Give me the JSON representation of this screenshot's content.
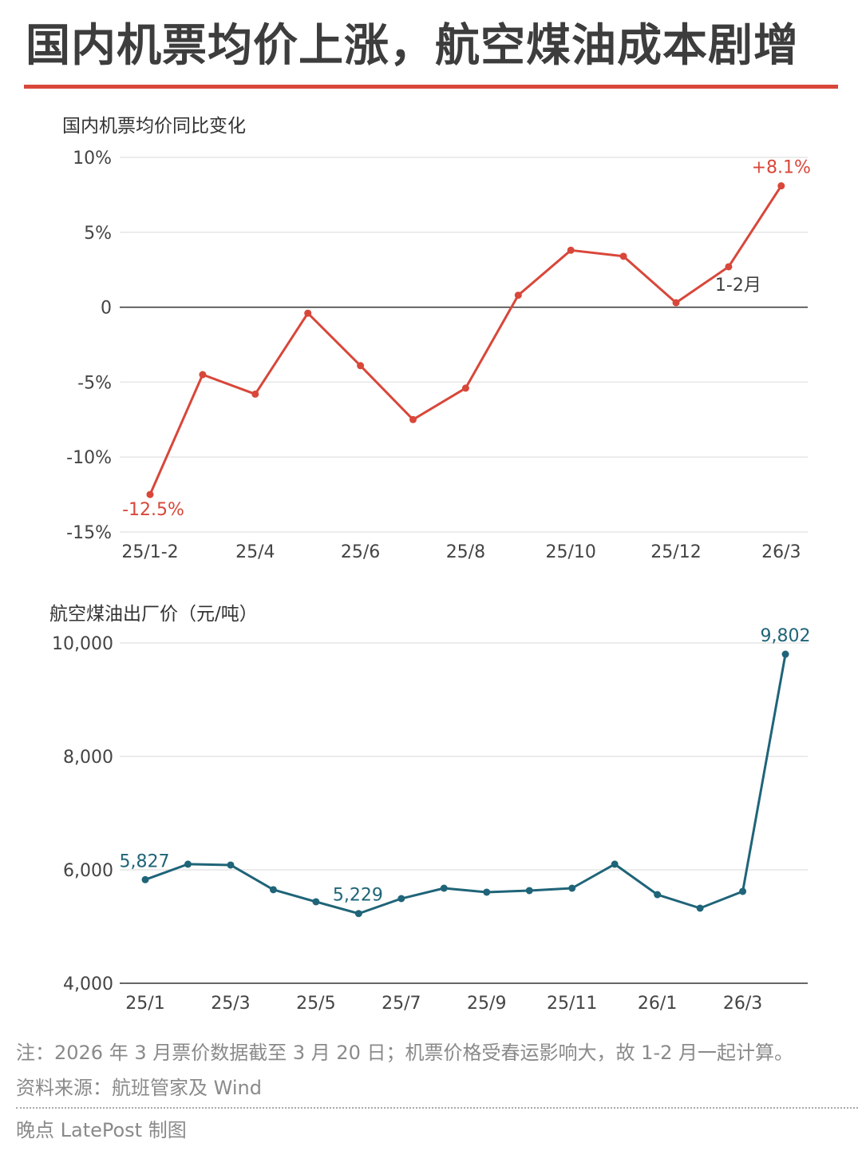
{
  "title": "国内机票均价上涨，航空煤油成本剧增",
  "colors": {
    "accent": "#d8473a",
    "line1": "#d8473a",
    "line2": "#1f6478",
    "grid": "#e6e6e6",
    "zero": "#333333"
  },
  "chart_data": [
    {
      "type": "line",
      "title": "国内机票均价同比变化",
      "x": [
        "25/1-2",
        "25/3",
        "25/4",
        "25/5",
        "25/6",
        "25/7",
        "25/8",
        "25/9",
        "25/10",
        "25/11",
        "25/12",
        "26/1-2",
        "26/3"
      ],
      "values": [
        -12.5,
        -4.5,
        -5.8,
        -0.4,
        -3.9,
        -7.5,
        -5.4,
        0.8,
        3.8,
        3.4,
        0.3,
        2.7,
        8.1
      ],
      "unit": "%",
      "ylim": [
        -15,
        10
      ],
      "yticks": [
        10,
        5,
        0,
        -5,
        -10,
        -15
      ],
      "ytick_labels": [
        "10%",
        "5%",
        "0",
        "-5%",
        "-10%",
        "-15%"
      ],
      "xtick_labels": [
        "25/1-2",
        "25/4",
        "25/6",
        "25/8",
        "25/10",
        "25/12",
        "26/3"
      ],
      "xtick_index": [
        0,
        2,
        4,
        6,
        8,
        10,
        12
      ],
      "annotations": [
        {
          "index": 0,
          "text": "-12.5%"
        },
        {
          "index": 12,
          "text": "+8.1%"
        },
        {
          "index": 11,
          "text": "1-2月"
        }
      ]
    },
    {
      "type": "line",
      "title": "航空煤油出厂价（元/吨）",
      "x": [
        "25/1",
        "25/2",
        "25/3",
        "25/4",
        "25/5",
        "25/6",
        "25/7",
        "25/8",
        "25/9",
        "25/10",
        "25/11",
        "25/12",
        "26/1",
        "26/2",
        "26/3",
        "26/4"
      ],
      "values": [
        5827,
        6100,
        6085,
        5650,
        5437,
        5229,
        5493,
        5676,
        5606,
        5634,
        5676,
        6100,
        5563,
        5324,
        5620,
        9802
      ],
      "ylim": [
        4000,
        10000
      ],
      "yticks": [
        10000,
        8000,
        6000,
        4000
      ],
      "ytick_labels": [
        "10,000",
        "8,000",
        "6,000",
        "4,000"
      ],
      "xtick_labels": [
        "25/1",
        "25/3",
        "25/5",
        "25/7",
        "25/9",
        "25/11",
        "26/1",
        "26/3"
      ],
      "xtick_index": [
        0,
        2,
        4,
        6,
        8,
        10,
        12,
        14
      ],
      "annotations": [
        {
          "index": 0,
          "text": "5,827"
        },
        {
          "index": 5,
          "text": "5,229"
        },
        {
          "index": 15,
          "text": "9,802"
        }
      ]
    }
  ],
  "footer": {
    "note": "注：2026 年 3 月票价数据截至 3 月 20 日；机票价格受春运影响大，故 1-2 月一起计算。",
    "source": "资料来源：航班管家及 Wind",
    "credit": "晚点 LatePost 制图"
  }
}
